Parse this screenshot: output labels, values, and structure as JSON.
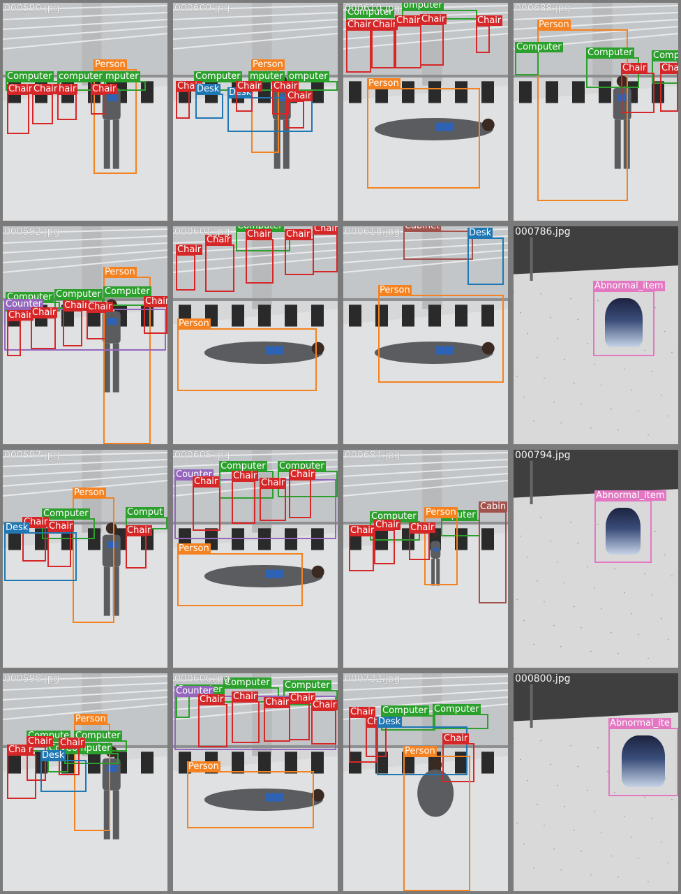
{
  "colors": {
    "Person": "#f58220",
    "Computer": "#2ca02c",
    "Chair": "#d62728",
    "Desk": "#1f77b4",
    "Counter": "#9467bd",
    "Cabinet": "#a0524d",
    "Abnormal_item": "#e377c2"
  },
  "tiles": [
    {
      "file": "000590.jpg",
      "scene": "office-walking",
      "boxes": [
        {
          "cls": "Person",
          "text": "Person",
          "b": [
            130,
            95,
            62,
            150
          ]
        },
        {
          "cls": "Computer",
          "text": "Computer",
          "b": [
            4,
            112,
            78,
            14
          ]
        },
        {
          "cls": "Computer",
          "text": "computer",
          "b": [
            78,
            112,
            50,
            14
          ]
        },
        {
          "cls": "Computer",
          "text": "mputer",
          "b": [
            145,
            112,
            60,
            14
          ]
        },
        {
          "cls": "Chair",
          "text": "Chair",
          "b": [
            6,
            130,
            32,
            58
          ]
        },
        {
          "cls": "Chair",
          "text": "Chair",
          "b": [
            42,
            130,
            30,
            44
          ]
        },
        {
          "cls": "Chair",
          "text": "hair",
          "b": [
            78,
            130,
            28,
            38
          ]
        },
        {
          "cls": "Chair",
          "text": "Chair",
          "b": [
            126,
            130,
            22,
            30
          ]
        }
      ]
    },
    {
      "file": "000600.jpg",
      "scene": "office-walking",
      "boxes": [
        {
          "cls": "Person",
          "text": "Person",
          "b": [
            112,
            95,
            40,
            120
          ]
        },
        {
          "cls": "Computer",
          "text": "Computer",
          "b": [
            30,
            112,
            78,
            14
          ]
        },
        {
          "cls": "Computer",
          "text": "mputer",
          "b": [
            108,
            112,
            56,
            14
          ]
        },
        {
          "cls": "Computer",
          "text": "omputer",
          "b": [
            164,
            112,
            72,
            14
          ]
        },
        {
          "cls": "Chair",
          "text": "Chair",
          "b": [
            4,
            126,
            20,
            40
          ]
        },
        {
          "cls": "Desk",
          "text": "Desk",
          "b": [
            32,
            130,
            40,
            36
          ]
        },
        {
          "cls": "Desk",
          "text": "Desk",
          "b": [
            78,
            135,
            122,
            50
          ]
        },
        {
          "cls": "Chair",
          "text": "Chair",
          "b": [
            90,
            126,
            24,
            30
          ]
        },
        {
          "cls": "Chair",
          "text": "Chair",
          "b": [
            142,
            126,
            24,
            34
          ]
        },
        {
          "cls": "Chair",
          "text": "Chair",
          "b": [
            162,
            140,
            26,
            40
          ]
        }
      ]
    },
    {
      "file": "000610.jpg",
      "scene": "office-lying",
      "boxes": [
        {
          "cls": "Computer",
          "text": "Computer",
          "b": [
            4,
            20,
            78,
            14
          ]
        },
        {
          "cls": "Computer",
          "text": "omputer",
          "b": [
            84,
            10,
            108,
            14
          ]
        },
        {
          "cls": "Chair",
          "text": "Chair",
          "b": [
            4,
            38,
            36,
            62
          ]
        },
        {
          "cls": "Chair",
          "text": "Chair",
          "b": [
            40,
            38,
            34,
            56
          ]
        },
        {
          "cls": "Chair",
          "text": "Chair",
          "b": [
            74,
            32,
            38,
            62
          ]
        },
        {
          "cls": "Chair",
          "text": "Chair",
          "b": [
            110,
            30,
            34,
            60
          ]
        },
        {
          "cls": "Chair",
          "text": "Chair",
          "b": [
            190,
            32,
            20,
            40
          ]
        },
        {
          "cls": "Person",
          "text": "Person",
          "b": [
            34,
            122,
            162,
            144
          ]
        }
      ]
    },
    {
      "file": "000688.jpg",
      "scene": "office-walking",
      "boxes": [
        {
          "cls": "Person",
          "text": "Person",
          "b": [
            34,
            38,
            130,
            246
          ]
        },
        {
          "cls": "Computer",
          "text": "Computer",
          "b": [
            2,
            70,
            34,
            34
          ]
        },
        {
          "cls": "Computer",
          "text": "Computer",
          "b": [
            104,
            78,
            76,
            44
          ]
        },
        {
          "cls": "Computer",
          "text": "Comp",
          "b": [
            198,
            82,
            40,
            34
          ]
        },
        {
          "cls": "Chair",
          "text": "Chair",
          "b": [
            154,
            100,
            48,
            58
          ]
        },
        {
          "cls": "Chair",
          "text": "Chair",
          "b": [
            210,
            100,
            30,
            56
          ]
        }
      ]
    },
    {
      "file": "000592.jpg",
      "scene": "office-walking",
      "boxes": [
        {
          "cls": "Person",
          "text": "Person",
          "b": [
            144,
            72,
            68,
            270
          ]
        },
        {
          "cls": "Computer",
          "text": "Computer",
          "b": [
            4,
            108,
            78,
            14
          ]
        },
        {
          "cls": "Computer",
          "text": "Computer",
          "b": [
            74,
            104,
            70,
            14
          ]
        },
        {
          "cls": "Computer",
          "text": "Computer",
          "b": [
            144,
            100,
            92,
            14
          ]
        },
        {
          "cls": "Counter",
          "text": "Counter",
          "b": [
            2,
            118,
            232,
            60
          ]
        },
        {
          "cls": "Chair",
          "text": "Chair",
          "b": [
            6,
            134,
            20,
            52
          ]
        },
        {
          "cls": "Chair",
          "text": "Chair",
          "b": [
            40,
            130,
            36,
            46
          ]
        },
        {
          "cls": "Chair",
          "text": "Chair",
          "b": [
            86,
            120,
            28,
            52
          ]
        },
        {
          "cls": "Chair",
          "text": "Chair",
          "b": [
            120,
            122,
            28,
            40
          ]
        },
        {
          "cls": "Chair",
          "text": "Chair",
          "b": [
            202,
            114,
            36,
            40
          ]
        }
      ]
    },
    {
      "file": "000601.jpg",
      "scene": "office-lying",
      "boxes": [
        {
          "cls": "Computer",
          "text": "Computer",
          "b": [
            90,
            6,
            78,
            30
          ]
        },
        {
          "cls": "Chair",
          "text": "Chair",
          "b": [
            4,
            40,
            28,
            52
          ]
        },
        {
          "cls": "Chair",
          "text": "Chair",
          "b": [
            46,
            26,
            42,
            68
          ]
        },
        {
          "cls": "Chair",
          "text": "Chair",
          "b": [
            104,
            18,
            40,
            64
          ]
        },
        {
          "cls": "Chair",
          "text": "Chair",
          "b": [
            160,
            18,
            42,
            52
          ]
        },
        {
          "cls": "Chair",
          "text": "Chair",
          "b": [
            200,
            10,
            36,
            56
          ]
        },
        {
          "cls": "Person",
          "text": "Person",
          "b": [
            6,
            146,
            200,
            90
          ]
        }
      ]
    },
    {
      "file": "000618.jpg",
      "scene": "office-lying-2",
      "boxes": [
        {
          "cls": "Cabinet",
          "text": "Cabinet",
          "b": [
            86,
            6,
            100,
            42
          ]
        },
        {
          "cls": "Desk",
          "text": "Desk",
          "b": [
            178,
            16,
            52,
            68
          ]
        },
        {
          "cls": "Person",
          "text": "Person",
          "b": [
            50,
            98,
            180,
            126
          ]
        }
      ]
    },
    {
      "file": "000786.jpg",
      "scene": "empty-bag",
      "boxes": [
        {
          "cls": "Abnormal_item",
          "text": "Abnormal_item",
          "b": [
            114,
            92,
            88,
            94
          ]
        }
      ]
    },
    {
      "file": "000597.jpg",
      "scene": "office-walking",
      "boxes": [
        {
          "cls": "Person",
          "text": "Person",
          "b": [
            100,
            68,
            60,
            180
          ]
        },
        {
          "cls": "Computer",
          "text": "Computer",
          "b": [
            56,
            98,
            76,
            30
          ]
        },
        {
          "cls": "Computer",
          "text": "Comput",
          "b": [
            176,
            96,
            60,
            18
          ]
        },
        {
          "cls": "Chair",
          "text": "Chair",
          "b": [
            28,
            110,
            34,
            50
          ]
        },
        {
          "cls": "Chair",
          "text": "Chair",
          "b": [
            64,
            116,
            34,
            52
          ]
        },
        {
          "cls": "Chair",
          "text": "Chair",
          "b": [
            176,
            122,
            30,
            48
          ]
        },
        {
          "cls": "Desk",
          "text": "Desk",
          "b": [
            2,
            118,
            104,
            70
          ]
        }
      ]
    },
    {
      "file": "000605.jpg",
      "scene": "office-lying",
      "boxes": [
        {
          "cls": "Counter",
          "text": "Counter",
          "b": [
            2,
            42,
            232,
            86
          ]
        },
        {
          "cls": "Computer",
          "text": "Computer",
          "b": [
            66,
            30,
            78,
            40
          ]
        },
        {
          "cls": "Computer",
          "text": "Computer",
          "b": [
            150,
            30,
            86,
            38
          ]
        },
        {
          "cls": "Chair",
          "text": "Chair",
          "b": [
            28,
            52,
            40,
            64
          ]
        },
        {
          "cls": "Chair",
          "text": "Chair",
          "b": [
            84,
            44,
            34,
            62
          ]
        },
        {
          "cls": "Chair",
          "text": "Chair",
          "b": [
            124,
            54,
            38,
            48
          ]
        },
        {
          "cls": "Chair",
          "text": "Chair",
          "b": [
            166,
            42,
            32,
            56
          ]
        },
        {
          "cls": "Person",
          "text": "Person",
          "b": [
            6,
            148,
            180,
            76
          ]
        }
      ]
    },
    {
      "file": "000684.jpg",
      "scene": "office-distance",
      "boxes": [
        {
          "cls": "Computer",
          "text": "Computer",
          "b": [
            38,
            102,
            72,
            28
          ]
        },
        {
          "cls": "Computer",
          "text": "mputer",
          "b": [
            140,
            100,
            56,
            24
          ]
        },
        {
          "cls": "Person",
          "text": "Person",
          "b": [
            116,
            96,
            48,
            98
          ]
        },
        {
          "cls": "Chair",
          "text": "Chair",
          "b": [
            8,
            122,
            36,
            52
          ]
        },
        {
          "cls": "Chair",
          "text": "Chair",
          "b": [
            44,
            114,
            30,
            50
          ]
        },
        {
          "cls": "Chair",
          "text": "Chair",
          "b": [
            94,
            118,
            30,
            40
          ]
        },
        {
          "cls": "Cabinet",
          "text": "Cabin",
          "b": [
            194,
            88,
            40,
            132
          ]
        }
      ]
    },
    {
      "file": "000794.jpg",
      "scene": "empty-bag",
      "boxes": [
        {
          "cls": "Abnormal_item",
          "text": "Abnormal_item",
          "b": [
            116,
            72,
            82,
            90
          ]
        }
      ]
    },
    {
      "file": "000598.jpg",
      "scene": "office-walking",
      "boxes": [
        {
          "cls": "Person",
          "text": "Person",
          "b": [
            102,
            72,
            52,
            154
          ]
        },
        {
          "cls": "Computer",
          "text": "Compute",
          "b": [
            34,
            96,
            72,
            16
          ]
        },
        {
          "cls": "Computer",
          "text": "Computer",
          "b": [
            102,
            96,
            76,
            16
          ]
        },
        {
          "cls": "Computer",
          "text": "Co",
          "b": [
            64,
            114,
            30,
            28
          ]
        },
        {
          "cls": "Computer",
          "text": "Computer",
          "b": [
            88,
            114,
            78,
            16
          ]
        },
        {
          "cls": "Chair",
          "text": "Chair",
          "b": [
            6,
            116,
            42,
            64
          ]
        },
        {
          "cls": "Chair",
          "text": "Chair",
          "b": [
            34,
            104,
            28,
            50
          ]
        },
        {
          "cls": "Chair",
          "text": "Chair",
          "b": [
            80,
            106,
            30,
            40
          ]
        },
        {
          "cls": "Desk",
          "text": "Desk",
          "b": [
            54,
            124,
            66,
            46
          ]
        }
      ]
    },
    {
      "file": "000606.jpg",
      "scene": "office-lying",
      "boxes": [
        {
          "cls": "Computer",
          "text": "Computer",
          "b": [
            4,
            30,
            20,
            34
          ]
        },
        {
          "cls": "Computer",
          "text": "Computer",
          "b": [
            72,
            20,
            80,
            22
          ]
        },
        {
          "cls": "Computer",
          "text": "Computer",
          "b": [
            158,
            24,
            78,
            22
          ]
        },
        {
          "cls": "Counter",
          "text": "Counter",
          "b": [
            2,
            32,
            232,
            78
          ]
        },
        {
          "cls": "Chair",
          "text": "Chair",
          "b": [
            36,
            44,
            42,
            62
          ]
        },
        {
          "cls": "Chair",
          "text": "Chair",
          "b": [
            84,
            40,
            40,
            60
          ]
        },
        {
          "cls": "Chair",
          "text": "Chair",
          "b": [
            130,
            48,
            38,
            50
          ]
        },
        {
          "cls": "Chair",
          "text": "Chair",
          "b": [
            166,
            42,
            30,
            54
          ]
        },
        {
          "cls": "Chair",
          "text": "Chair",
          "b": [
            198,
            52,
            36,
            50
          ]
        },
        {
          "cls": "Person",
          "text": "Person",
          "b": [
            20,
            140,
            182,
            82
          ]
        }
      ]
    },
    {
      "file": "000732.jpg",
      "scene": "office-crouch",
      "boxes": [
        {
          "cls": "Computer",
          "text": "Computer",
          "b": [
            54,
            60,
            78,
            22
          ]
        },
        {
          "cls": "Computer",
          "text": "Computer",
          "b": [
            128,
            58,
            80,
            22
          ]
        },
        {
          "cls": "Chair",
          "text": "Chair",
          "b": [
            8,
            62,
            40,
            66
          ]
        },
        {
          "cls": "Chair",
          "text": "Chair",
          "b": [
            32,
            76,
            30,
            44
          ]
        },
        {
          "cls": "Desk",
          "text": "Desk",
          "b": [
            48,
            76,
            130,
            70
          ]
        },
        {
          "cls": "Chair",
          "text": "Chair",
          "b": [
            142,
            100,
            46,
            56
          ]
        },
        {
          "cls": "Person",
          "text": "Person",
          "b": [
            86,
            118,
            96,
            226
          ]
        }
      ]
    },
    {
      "file": "000800.jpg",
      "scene": "empty-bag-far",
      "boxes": [
        {
          "cls": "Abnormal_item",
          "text": "Abnormal_ite",
          "b": [
            136,
            78,
            100,
            98
          ]
        }
      ]
    }
  ]
}
